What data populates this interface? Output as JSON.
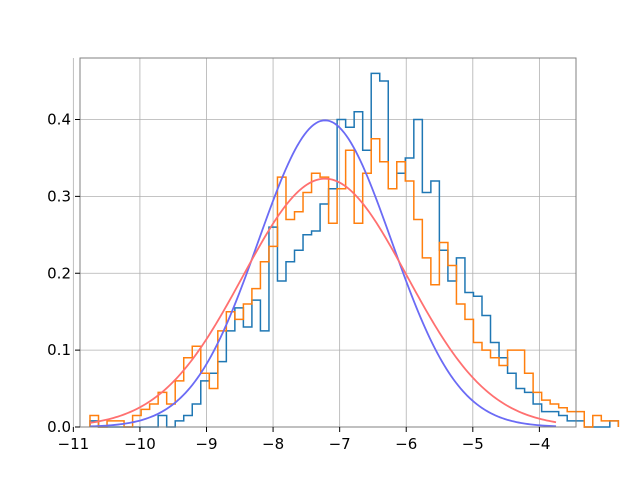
{
  "chart_data": {
    "type": "histogram",
    "title": "",
    "xlabel": "",
    "ylabel": "",
    "xlim": [
      -10.9,
      -3.45
    ],
    "ylim": [
      0,
      0.48
    ],
    "grid": true,
    "legend": "none",
    "x_ticks": [
      -11,
      -10,
      -9,
      -8,
      -7,
      -6,
      -5,
      -4
    ],
    "x_tick_labels": [
      "−11",
      "−10",
      "−9",
      "−8",
      "−7",
      "−6",
      "−5",
      "−4"
    ],
    "y_ticks": [
      0.0,
      0.1,
      0.2,
      0.3,
      0.4
    ],
    "y_tick_labels": [
      "0.0",
      "0.1",
      "0.2",
      "0.3",
      "0.4"
    ],
    "histograms": [
      {
        "color": "#1f77b4",
        "bin_start": -10.75,
        "bin_width": 0.128,
        "values": [
          0.008,
          0.0,
          0.0,
          0.0,
          0.0,
          0.0,
          0.0,
          0.0,
          0.015,
          0.0,
          0.008,
          0.015,
          0.03,
          0.06,
          0.07,
          0.085,
          0.125,
          0.155,
          0.13,
          0.165,
          0.125,
          0.26,
          0.19,
          0.215,
          0.23,
          0.25,
          0.255,
          0.29,
          0.31,
          0.4,
          0.39,
          0.41,
          0.36,
          0.46,
          0.45,
          0.31,
          0.33,
          0.35,
          0.4,
          0.305,
          0.32,
          0.23,
          0.19,
          0.22,
          0.175,
          0.17,
          0.145,
          0.11,
          0.09,
          0.07,
          0.05,
          0.045,
          0.03,
          0.02,
          0.02,
          0.015,
          0.008,
          0.008,
          0.0,
          0.0,
          0.0,
          0.008
        ]
      },
      {
        "color": "#ff7f0e",
        "bin_start": -10.75,
        "bin_width": 0.128,
        "values": [
          0.015,
          0.0,
          0.008,
          0.008,
          0.0,
          0.015,
          0.023,
          0.03,
          0.045,
          0.03,
          0.06,
          0.09,
          0.105,
          0.07,
          0.05,
          0.125,
          0.15,
          0.14,
          0.16,
          0.18,
          0.215,
          0.235,
          0.325,
          0.27,
          0.28,
          0.305,
          0.33,
          0.325,
          0.265,
          0.31,
          0.36,
          0.265,
          0.33,
          0.375,
          0.345,
          0.31,
          0.345,
          0.32,
          0.27,
          0.22,
          0.185,
          0.24,
          0.21,
          0.16,
          0.14,
          0.11,
          0.1,
          0.09,
          0.08,
          0.1,
          0.1,
          0.07,
          0.045,
          0.035,
          0.03,
          0.025,
          0.02,
          0.02,
          0.0,
          0.015,
          0.008,
          0.008
        ]
      }
    ],
    "curves": [
      {
        "color": "#6b6bf5",
        "type": "normal_pdf",
        "mean": -7.22,
        "std": 1.0,
        "x_range": [
          -10.75,
          -3.75
        ]
      },
      {
        "color": "#ff7070",
        "type": "normal_pdf",
        "mean": -7.22,
        "std": 1.235,
        "x_range": [
          -10.75,
          -3.75
        ]
      }
    ]
  }
}
